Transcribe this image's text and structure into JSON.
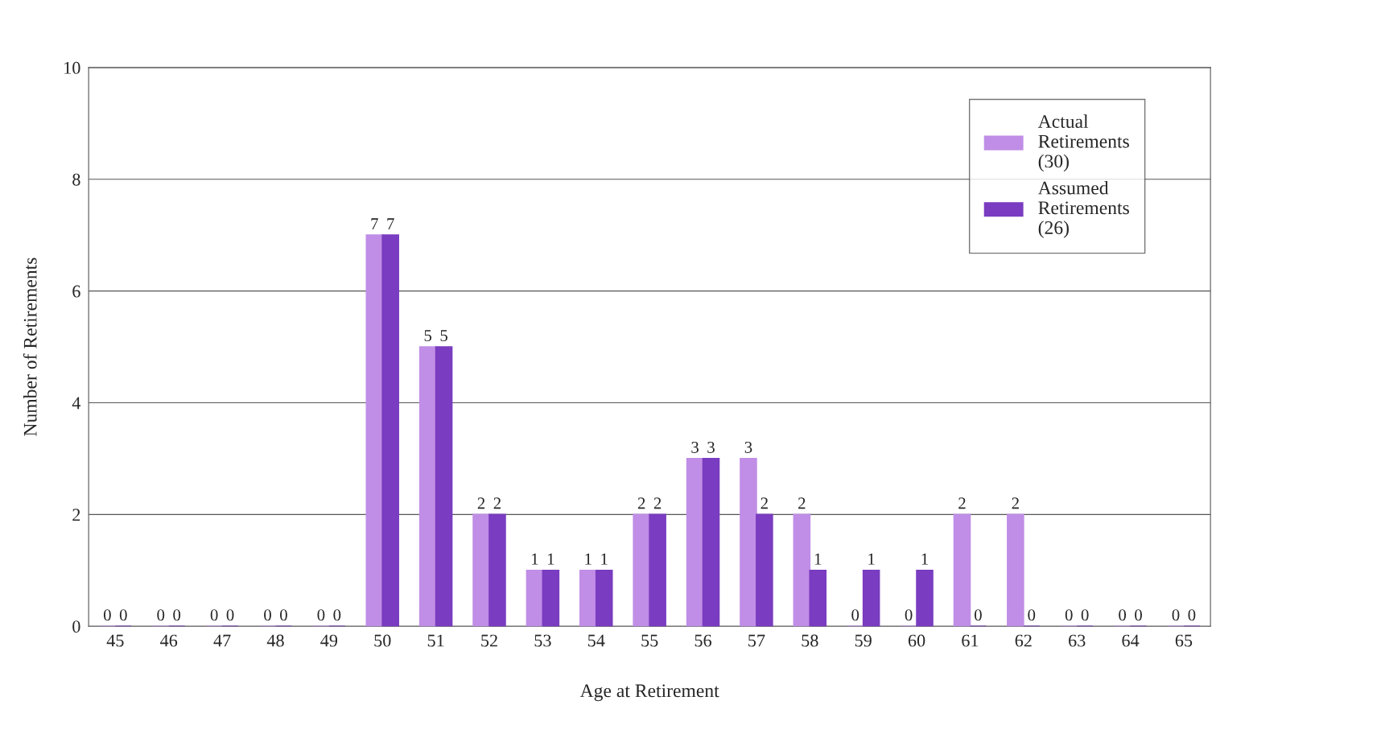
{
  "chart_data": {
    "type": "bar",
    "xlabel": "Age at Retirement",
    "ylabel": "Number of Retirements",
    "categories": [
      "45",
      "46",
      "47",
      "48",
      "49",
      "50",
      "51",
      "52",
      "53",
      "54",
      "55",
      "56",
      "57",
      "58",
      "59",
      "60",
      "61",
      "62",
      "63",
      "64",
      "65"
    ],
    "series": [
      {
        "name": "Actual\nRetirements\n(30)",
        "color": "#c08ee6",
        "values": [
          0,
          0,
          0,
          0,
          0,
          7,
          5,
          2,
          1,
          1,
          2,
          3,
          3,
          2,
          0,
          0,
          2,
          2,
          0,
          0,
          0
        ]
      },
      {
        "name": "Assumed\nRetirements\n(26)",
        "color": "#7a3cc0",
        "values": [
          0,
          0,
          0,
          0,
          0,
          7,
          5,
          2,
          1,
          1,
          2,
          3,
          2,
          1,
          1,
          1,
          0,
          0,
          0,
          0,
          0
        ]
      }
    ],
    "ylim": [
      0,
      10
    ],
    "yticks": [
      0,
      2,
      4,
      6,
      8,
      10
    ],
    "grid": "y",
    "legend": "top right",
    "data_labels": true
  }
}
